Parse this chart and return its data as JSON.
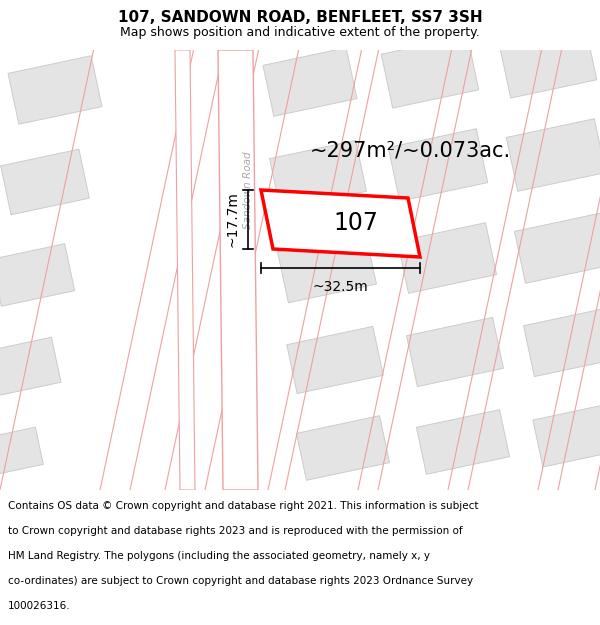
{
  "title": "107, SANDOWN ROAD, BENFLEET, SS7 3SH",
  "subtitle": "Map shows position and indicative extent of the property.",
  "footer_lines": [
    "Contains OS data © Crown copyright and database right 2021. This information is subject",
    "to Crown copyright and database rights 2023 and is reproduced with the permission of",
    "HM Land Registry. The polygons (including the associated geometry, namely x, y",
    "co-ordinates) are subject to Crown copyright and database rights 2023 Ordnance Survey",
    "100026316."
  ],
  "bg_color": "#f8f8f8",
  "road_fill": "#ffffff",
  "road_border": "#f0a0a0",
  "building_fill": "#e4e4e4",
  "building_edge": "#cccccc",
  "highlight_fill": "#ffffff",
  "highlight_edge": "#ff0000",
  "area_text": "~297m²/~0.073ac.",
  "prop_label": "107",
  "dim_width_label": "~32.5m",
  "dim_height_label": "~17.7m",
  "road_label": "Sandown Road",
  "road_label_color": "#aaaaaa",
  "title_fontsize": 11,
  "subtitle_fontsize": 9,
  "footer_fontsize": 7.5,
  "area_fontsize": 15,
  "prop_label_fontsize": 17,
  "dim_fontsize": 10,
  "road_label_fontsize": 7.5
}
